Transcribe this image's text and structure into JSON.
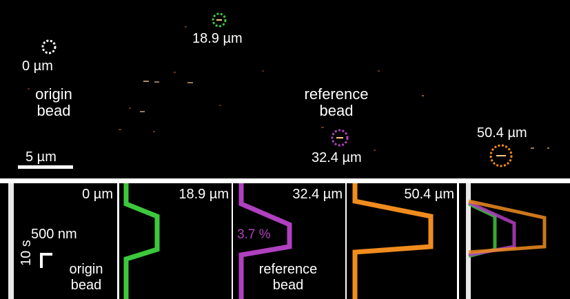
{
  "top": {
    "beads": [
      {
        "name": "origin",
        "distance": "0 µm",
        "color": "#ffffff"
      },
      {
        "name": "green",
        "distance": "18.9 µm",
        "color": "#3cc83c"
      },
      {
        "name": "reference",
        "distance": "32.4 µm",
        "color": "#b040c0"
      },
      {
        "name": "orange",
        "distance": "50.4 µm",
        "color": "#f08c1e"
      }
    ],
    "origin_label": [
      "origin",
      "bead"
    ],
    "reference_label": [
      "reference",
      "bead"
    ],
    "scalebar": "5 µm"
  },
  "bottom": {
    "kymographs": [
      {
        "distance": "0 µm",
        "color": "#ffffff"
      },
      {
        "distance": "18.9 µm",
        "color": "#3cc83c"
      },
      {
        "distance": "32.4 µm",
        "color": "#b040c0"
      },
      {
        "distance": "50.4 µm",
        "color": "#f08c1e"
      },
      {
        "distance": "",
        "color": "overlay"
      }
    ],
    "scale_x": "500 nm",
    "scale_y": "10 s",
    "origin_label": [
      "origin",
      "bead"
    ],
    "reference_label": [
      "reference",
      "bead"
    ],
    "percent": "3.7 %"
  }
}
